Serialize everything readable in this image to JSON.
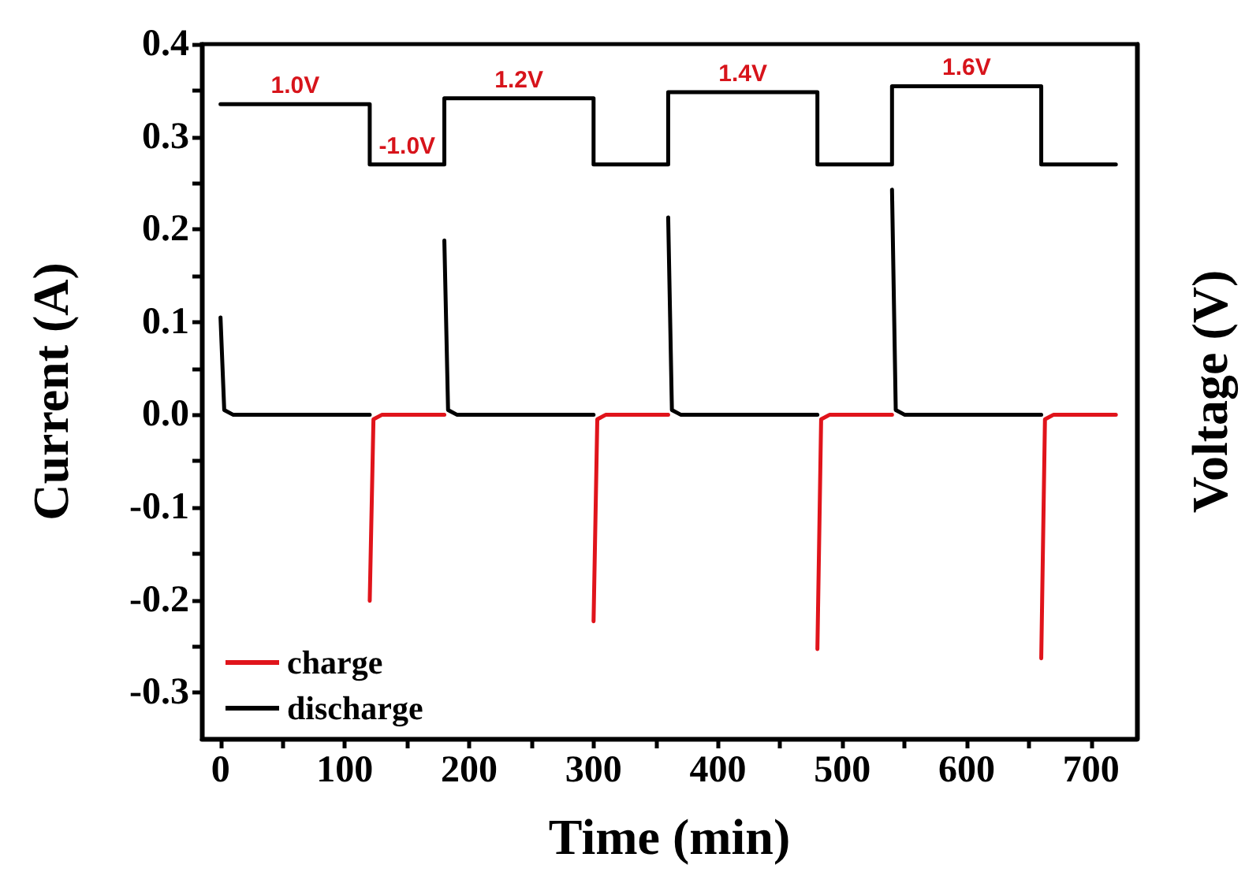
{
  "chart_data": {
    "type": "line",
    "xlabel": "Time (min)",
    "ylabel": "Current (A)",
    "y2label": "Voltage (V)",
    "xlim": [
      -15,
      737
    ],
    "xticks": [
      0,
      {
        "value": 50,
        "label": null
      },
      100,
      {
        "value": 150,
        "label": null
      },
      200,
      {
        "value": 250,
        "label": null
      },
      300,
      {
        "value": 350,
        "label": null
      },
      400,
      {
        "value": 450,
        "label": null
      },
      500,
      {
        "value": 550,
        "label": null
      },
      600,
      {
        "value": 650,
        "label": null
      },
      700
    ],
    "ylim": [
      -0.35,
      0.4
    ],
    "yticks": [
      -0.3,
      {
        "value": -0.25,
        "label": null
      },
      -0.2,
      {
        "value": -0.15,
        "label": null
      },
      -0.1,
      {
        "value": -0.05,
        "label": null
      },
      {
        "value": 0,
        "label": "0.0"
      },
      {
        "value": 0.05,
        "label": null
      },
      0.1,
      {
        "value": 0.15,
        "label": null
      },
      0.2,
      {
        "value": 0.25,
        "label": null
      },
      0.3,
      {
        "value": 0.35,
        "label": null
      },
      0.4
    ],
    "y2lim": [
      -20.1,
      3.0
    ],
    "tick_labels": "xy",
    "grid": false,
    "legend": "bottom left",
    "marker": "none",
    "line_style": "solid",
    "series": [
      {
        "name": "charge",
        "color": "#e0141b",
        "x": [
          120,
          123,
          130,
          180
        ],
        "values": [
          -0.201,
          -0.005,
          0,
          0
        ]
      },
      {
        "color": "#e0141b",
        "x": [
          300,
          303,
          310,
          360
        ],
        "values": [
          -0.223,
          -0.005,
          0,
          0
        ]
      },
      {
        "color": "#e0141b",
        "x": [
          480,
          483,
          490,
          540
        ],
        "values": [
          -0.253,
          -0.005,
          0,
          0
        ]
      },
      {
        "color": "#e0141b",
        "x": [
          660,
          663,
          670,
          720
        ],
        "values": [
          -0.263,
          -0.005,
          0,
          0
        ]
      },
      {
        "name": "discharge",
        "color": "#000000",
        "x": [
          0,
          3,
          10,
          120
        ],
        "values": [
          0.105,
          0.005,
          0,
          0
        ]
      },
      {
        "color": "#000000",
        "x": [
          180,
          183,
          190,
          300
        ],
        "values": [
          0.188,
          0.005,
          0,
          0
        ]
      },
      {
        "color": "#000000",
        "x": [
          360,
          363,
          370,
          480
        ],
        "values": [
          0.213,
          0.005,
          0,
          0
        ]
      },
      {
        "color": "#000000",
        "x": [
          540,
          543,
          550,
          660
        ],
        "values": [
          0.243,
          0.005,
          0,
          0
        ]
      },
      {
        "color": "#000000",
        "axis": "y2",
        "x": [
          0,
          60,
          120,
          120,
          150,
          180,
          180,
          240,
          300,
          300,
          330,
          360,
          360,
          420,
          480,
          480,
          510,
          540,
          540,
          600,
          660,
          660,
          690,
          720
        ],
        "values": [
          1.0,
          1.0,
          1.0,
          -1.0,
          -1.0,
          -1.0,
          1.2,
          1.2,
          1.2,
          -1.0,
          -1.0,
          -1.0,
          1.4,
          1.4,
          1.4,
          -1.0,
          -1.0,
          -1.0,
          1.6,
          1.6,
          1.6,
          -1.0,
          -1.0,
          -1.0
        ],
        "value_labels": [
          null,
          "1.0V",
          null,
          null,
          "-1.0V",
          null,
          null,
          "1.2V",
          null,
          null,
          null,
          null,
          null,
          "1.4V",
          null,
          null,
          null,
          null,
          null,
          "1.6V",
          null,
          null,
          null,
          null
        ]
      }
    ]
  }
}
